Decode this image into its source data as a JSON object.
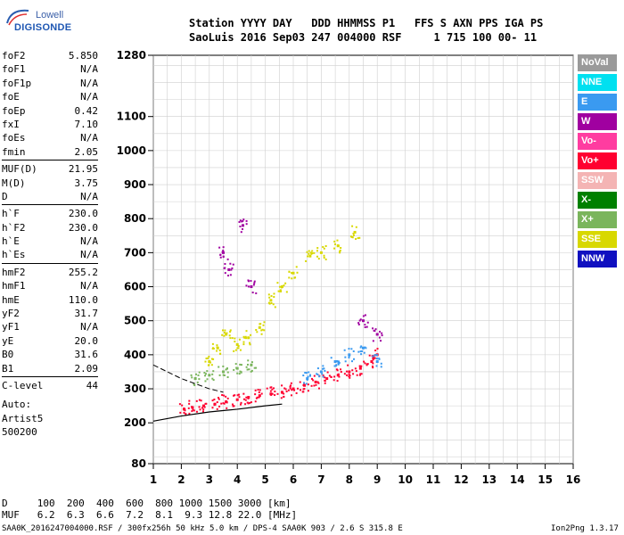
{
  "logo": {
    "line1": "Lowell",
    "line2": "DIGISONDE"
  },
  "header": {
    "line1": "Station YYYY DAY   DDD HHMMSS P1   FFS S AXN PPS IGA PS",
    "line2": "SaoLuis 2016 Sep03 247 004000 RSF     1 715 100 00- 11"
  },
  "params": [
    {
      "key": "foF2",
      "value": "5.850"
    },
    {
      "key": "foF1",
      "value": "N/A"
    },
    {
      "key": "foF1p",
      "value": "N/A"
    },
    {
      "key": "foE",
      "value": "N/A"
    },
    {
      "key": "foEp",
      "value": "0.42"
    },
    {
      "key": "fxI",
      "value": "7.10"
    },
    {
      "key": "foEs",
      "value": "N/A"
    },
    {
      "key": "fmin",
      "value": "2.05"
    },
    {
      "key": "MUF(D)",
      "value": "21.95"
    },
    {
      "key": "M(D)",
      "value": "3.75"
    },
    {
      "key": "D",
      "value": "N/A"
    },
    {
      "key": "h`F",
      "value": "230.0"
    },
    {
      "key": "h`F2",
      "value": "230.0"
    },
    {
      "key": "h`E",
      "value": "N/A"
    },
    {
      "key": "h`Es",
      "value": "N/A"
    },
    {
      "key": "hmF2",
      "value": "255.2"
    },
    {
      "key": "hmF1",
      "value": "N/A"
    },
    {
      "key": "hmE",
      "value": "110.0"
    },
    {
      "key": "yF2",
      "value": "31.7"
    },
    {
      "key": "yF1",
      "value": "N/A"
    },
    {
      "key": "yE",
      "value": "20.0"
    },
    {
      "key": "B0",
      "value": "31.6"
    },
    {
      "key": "B1",
      "value": "2.09"
    },
    {
      "key": "C-level",
      "value": "44"
    }
  ],
  "autoscaling": {
    "line1": "Auto:",
    "line2": "Artist5",
    "line3": "500200"
  },
  "legend": [
    {
      "label": "NoVal",
      "color": "#9a9a9a"
    },
    {
      "label": "NNE",
      "color": "#00e0f0"
    },
    {
      "label": "E",
      "color": "#3a9af0"
    },
    {
      "label": "W",
      "color": "#a000a0"
    },
    {
      "label": "Vo-",
      "color": "#ff3ca0"
    },
    {
      "label": "Vo+",
      "color": "#ff0030"
    },
    {
      "label": "SSW",
      "color": "#f4b4b4"
    },
    {
      "label": "X-",
      "color": "#008000"
    },
    {
      "label": "X+",
      "color": "#7ab55c"
    },
    {
      "label": "SSE",
      "color": "#d8d800"
    },
    {
      "label": "NNW",
      "color": "#1010c0"
    }
  ],
  "chart_data": {
    "type": "scatter",
    "title": "",
    "xlabel": "",
    "ylabel": "",
    "x_ticks": [
      1,
      2,
      3,
      4,
      5,
      6,
      7,
      8,
      9,
      10,
      11,
      12,
      13,
      14,
      15,
      16
    ],
    "y_ticks": [
      80,
      200,
      300,
      400,
      500,
      600,
      700,
      800,
      900,
      1000,
      1100,
      1280
    ],
    "xlim": [
      1,
      16
    ],
    "ylim": [
      80,
      1280
    ],
    "grid": true,
    "scale": "ionogram virtual height (km) vs frequency (MHz)",
    "series": [
      {
        "name": "Vo+",
        "color": "#ff0030",
        "points": [
          [
            2.1,
            240
          ],
          [
            2.4,
            245
          ],
          [
            2.8,
            250
          ],
          [
            3.2,
            255
          ],
          [
            3.6,
            262
          ],
          [
            4.0,
            268
          ],
          [
            4.4,
            275
          ],
          [
            4.8,
            280
          ],
          [
            5.2,
            285
          ],
          [
            5.6,
            290
          ],
          [
            6.0,
            300
          ],
          [
            6.4,
            310
          ],
          [
            6.8,
            320
          ],
          [
            7.2,
            330
          ],
          [
            7.6,
            340
          ],
          [
            8.0,
            350
          ],
          [
            8.4,
            360
          ],
          [
            8.8,
            380
          ],
          [
            9.0,
            400
          ]
        ]
      },
      {
        "name": "SSE",
        "color": "#d8d800",
        "points": [
          [
            3.0,
            380
          ],
          [
            3.3,
            420
          ],
          [
            3.6,
            460
          ],
          [
            4.0,
            430
          ],
          [
            4.4,
            450
          ],
          [
            4.8,
            480
          ],
          [
            5.2,
            560
          ],
          [
            5.6,
            600
          ],
          [
            6.0,
            640
          ],
          [
            6.6,
            690
          ],
          [
            7.0,
            700
          ],
          [
            7.6,
            720
          ],
          [
            8.2,
            760
          ]
        ]
      },
      {
        "name": "E",
        "color": "#3a9af0",
        "points": [
          [
            6.5,
            330
          ],
          [
            7.0,
            350
          ],
          [
            7.5,
            380
          ],
          [
            8.0,
            400
          ],
          [
            8.5,
            420
          ],
          [
            9.0,
            380
          ]
        ]
      },
      {
        "name": "W",
        "color": "#a000a0",
        "points": [
          [
            3.5,
            700
          ],
          [
            3.7,
            650
          ],
          [
            4.2,
            780
          ],
          [
            4.5,
            600
          ],
          [
            8.5,
            500
          ],
          [
            9.0,
            460
          ]
        ]
      },
      {
        "name": "X+",
        "color": "#7ab55c",
        "points": [
          [
            2.5,
            330
          ],
          [
            3.0,
            340
          ],
          [
            3.5,
            350
          ],
          [
            4.0,
            360
          ],
          [
            4.5,
            370
          ]
        ]
      }
    ]
  },
  "dmuf": {
    "line1": "D     100  200  400  600  800 1000 1500 3000 [km]",
    "line2": "MUF   6.2  6.3  6.6  7.2  8.1  9.3 12.8 22.0 [MHz]"
  },
  "footer": {
    "file": "SAA0K_2016247004000.RSF / 300fx256h 50 kHz 5.0 km / DPS-4 SAA0K 903 / 2.6 S 315.8 E",
    "version": "Ion2Png 1.3.17"
  }
}
